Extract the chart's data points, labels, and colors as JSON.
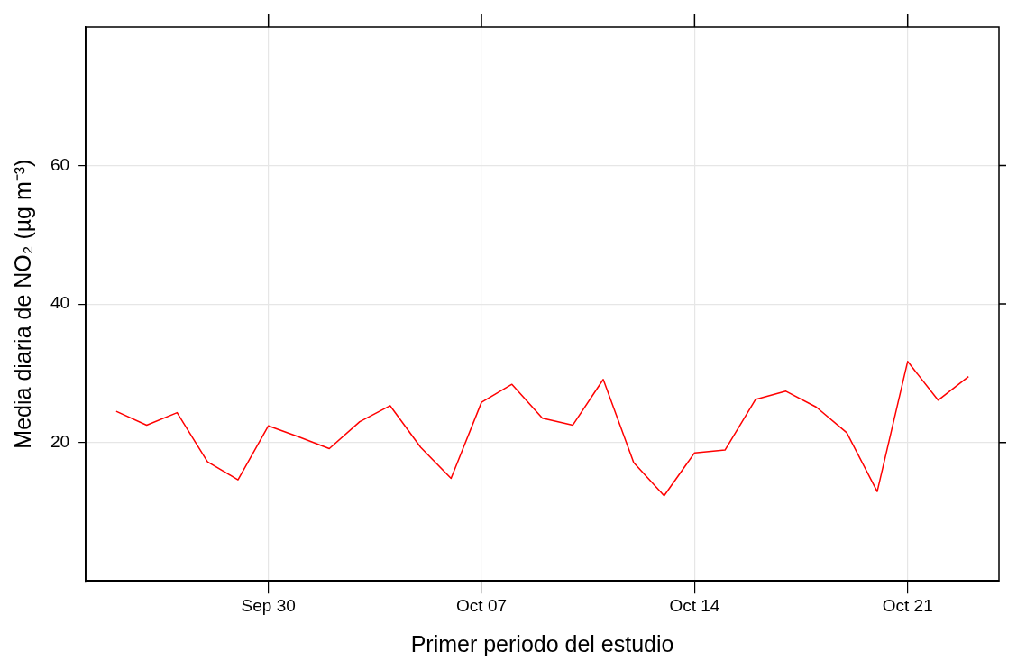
{
  "chart_data": {
    "type": "line",
    "xlabel": "Primer periodo del estudio",
    "ylabel": "Media diaria de NO₂ (µg m⁻³)",
    "x": [
      "--09-25",
      "--09-26",
      "--09-27",
      "--09-28",
      "--09-29",
      "--09-30",
      "--10-01",
      "--10-02",
      "--10-03",
      "--10-04",
      "--10-05",
      "--10-06",
      "--10-07",
      "--10-08",
      "--10-09",
      "--10-10",
      "--10-11",
      "--10-12",
      "--10-13",
      "--10-14",
      "--10-15",
      "--10-16",
      "--10-17",
      "--10-18",
      "--10-19",
      "--10-20",
      "--10-21",
      "--10-22",
      "--10-23"
    ],
    "series": [
      {
        "color": "#ff0000",
        "values": [
          24.5,
          22.5,
          24.3,
          17.2,
          14.6,
          22.4,
          20.8,
          19.1,
          23.0,
          25.3,
          19.3,
          14.8,
          25.8,
          28.4,
          23.5,
          22.5,
          29.1,
          17.1,
          12.3,
          18.5,
          18.9,
          26.2,
          27.4,
          25.1,
          21.4,
          12.9,
          31.7,
          26.1,
          29.5
        ]
      }
    ],
    "xlim": [
      "--09-24",
      "--10-24"
    ],
    "xticks": [
      {
        "value": "--09-30",
        "label": "Sep 30"
      },
      {
        "value": "--10-07",
        "label": "Oct 07"
      },
      {
        "value": "--10-14",
        "label": "Oct 14"
      },
      {
        "value": "--10-21",
        "label": "Oct 21"
      }
    ],
    "ylim": [
      0,
      80
    ],
    "yticks": [
      20,
      40,
      60
    ],
    "grid": true,
    "legend": false,
    "marker": "none",
    "line_style": "solid"
  }
}
